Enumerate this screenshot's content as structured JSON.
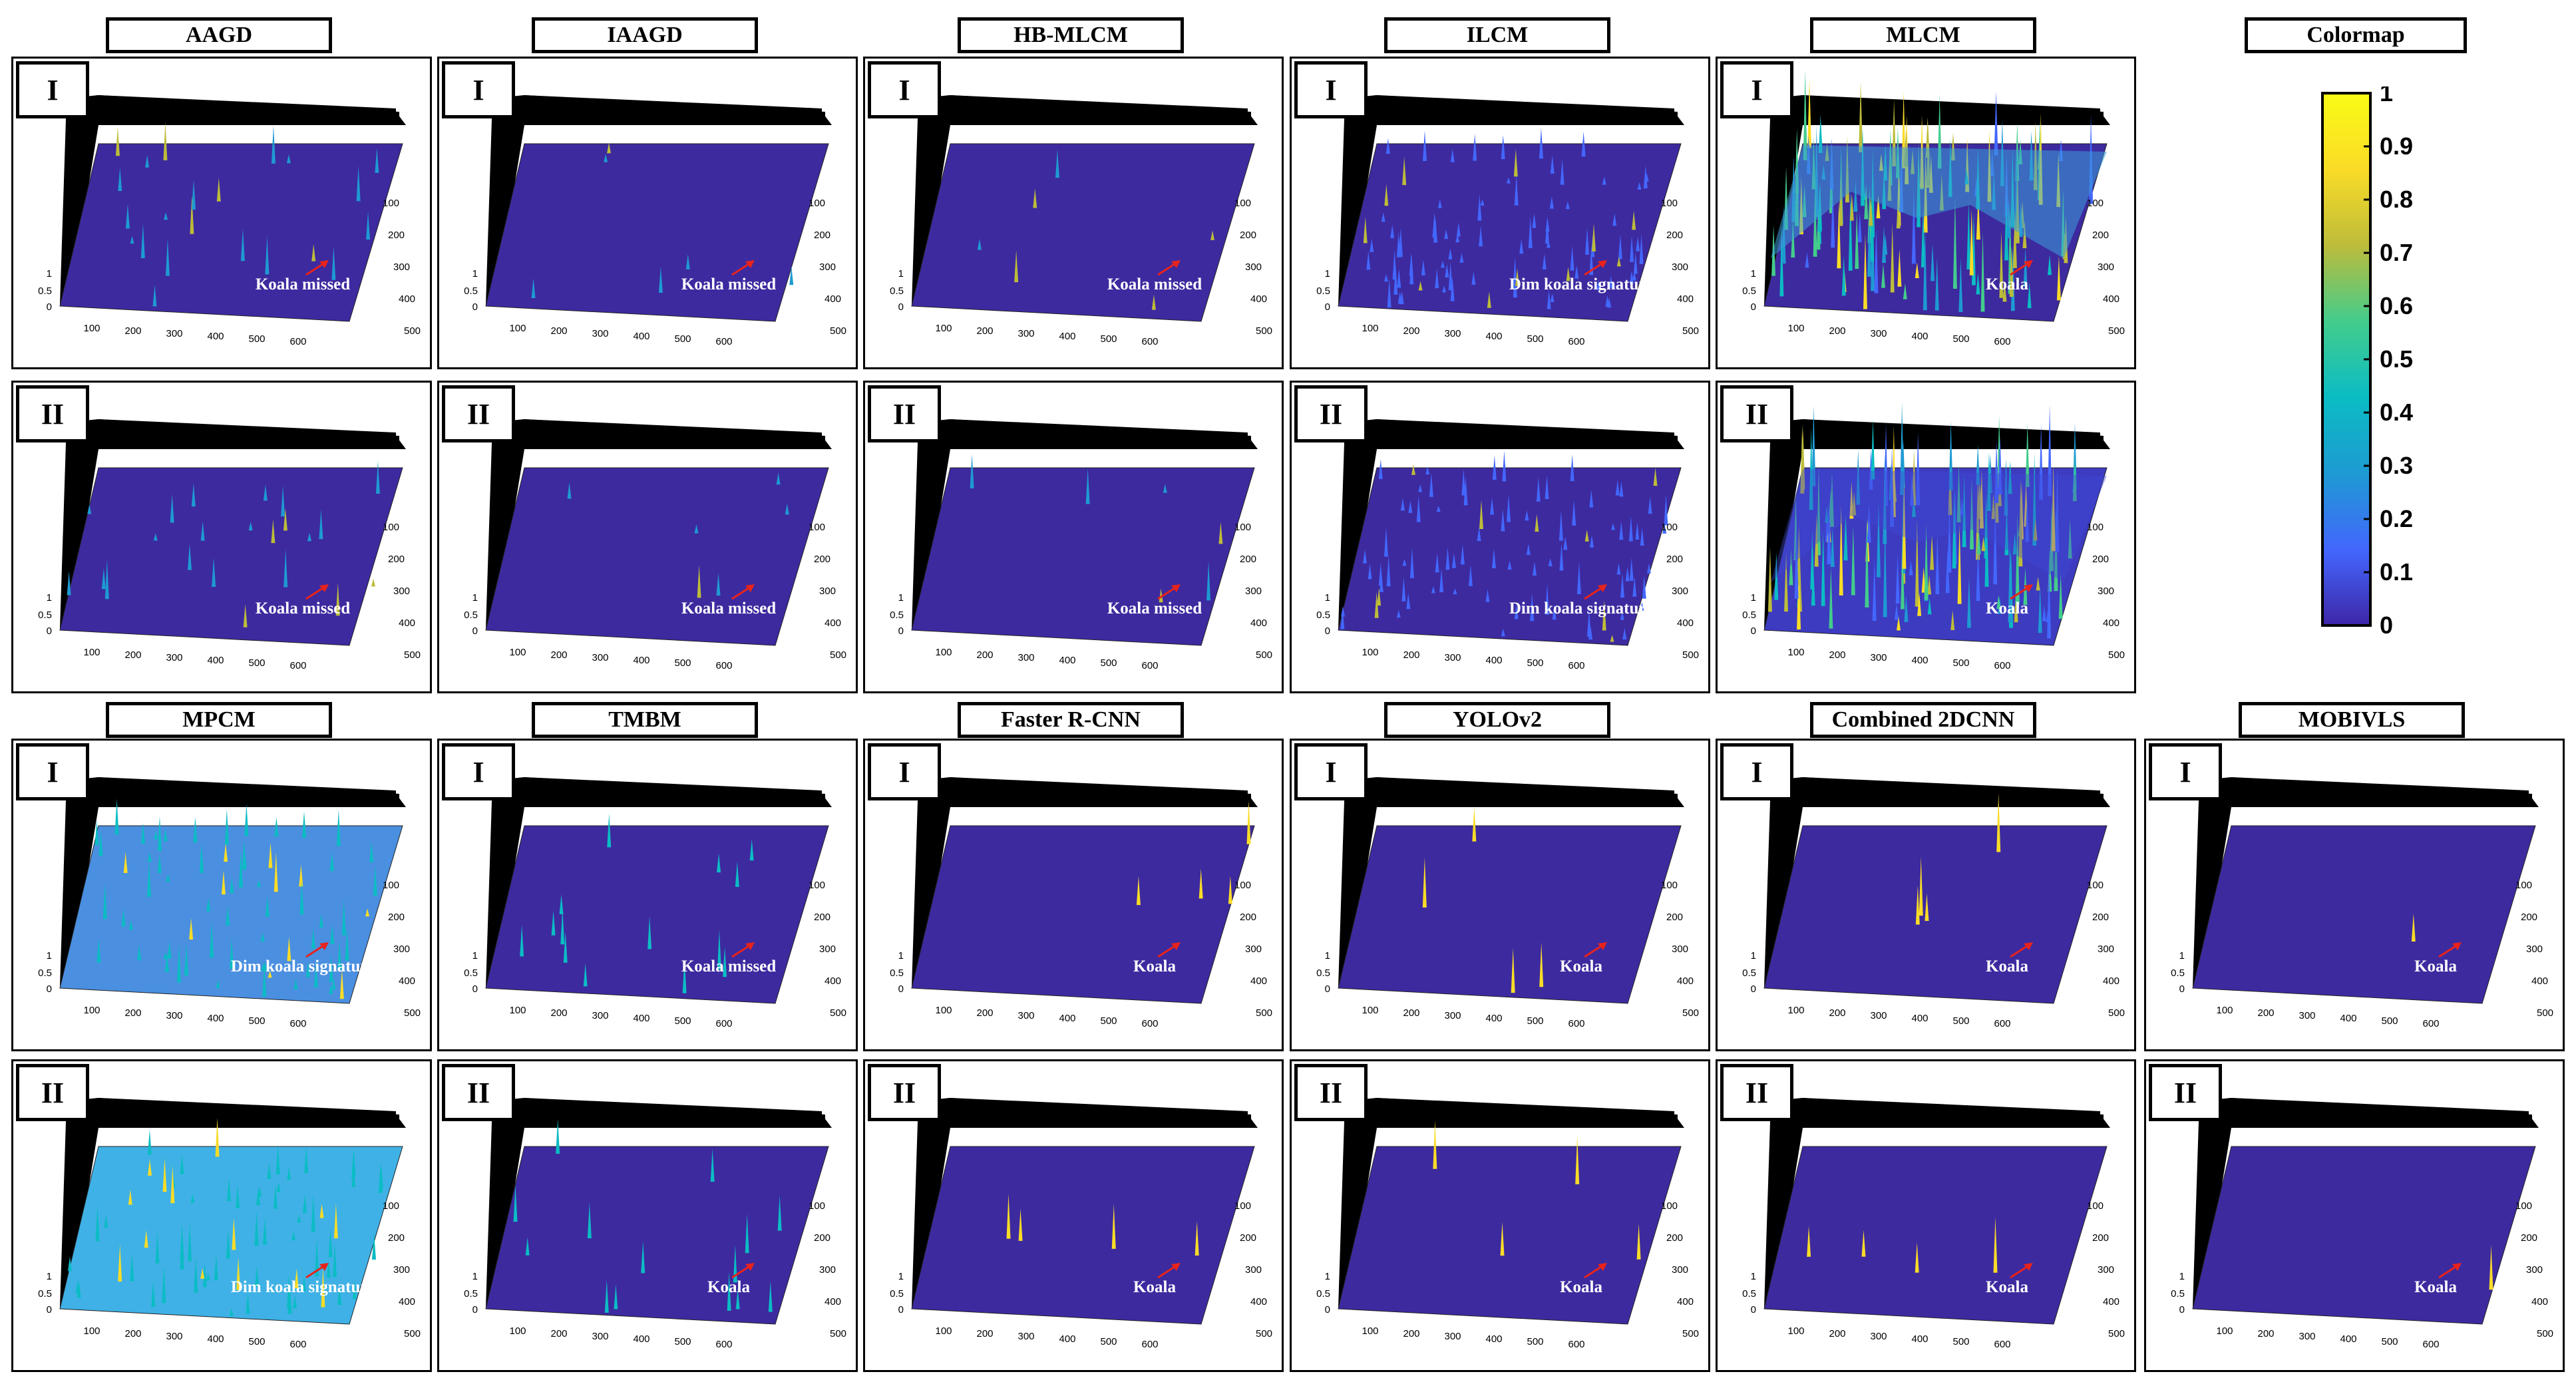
{
  "panel_labels": [
    "I",
    "II"
  ],
  "axis": {
    "z_ticks": [
      "0",
      "0.5",
      "1"
    ],
    "x_ticks": [
      "100",
      "200",
      "300",
      "400",
      "500",
      "600"
    ],
    "y_ticks": [
      "100",
      "200",
      "300",
      "400",
      "500"
    ]
  },
  "colormap": {
    "title": "Colormap",
    "ticks": [
      "0",
      "0.1",
      "0.2",
      "0.3",
      "0.4",
      "0.5",
      "0.6",
      "0.7",
      "0.8",
      "0.9",
      "1"
    ],
    "colors": [
      "#3e26a8",
      "#4367fd",
      "#1e9ad2",
      "#0bbcc4",
      "#43cc8c",
      "#bdbc3a",
      "#fadc27",
      "#f9fb15"
    ]
  },
  "methods": [
    {
      "name": "AAGD",
      "style": "sparse",
      "annotations": [
        "Koala missed",
        "Koala missed"
      ]
    },
    {
      "name": "IAAGD",
      "style": "empty",
      "annotations": [
        "Koala missed",
        "Koala missed"
      ]
    },
    {
      "name": "HB-MLCM",
      "style": "empty",
      "annotations": [
        "Koala missed",
        "Koala missed"
      ]
    },
    {
      "name": "ILCM",
      "style": "noisy",
      "annotations": [
        "Dim koala signature",
        "Dim koala signature"
      ]
    },
    {
      "name": "MLCM",
      "style": "heavy",
      "annotations": [
        "Koala",
        "Koala"
      ]
    },
    {
      "name": "MPCM",
      "style": "raised",
      "annotations": [
        "Dim koala signature",
        "Dim koala signature"
      ]
    },
    {
      "name": "TMBM",
      "style": "blobs",
      "annotations": [
        "Koala missed",
        "Koala"
      ]
    },
    {
      "name": "Faster R-CNN",
      "style": "few",
      "annotations": [
        "Koala",
        "Koala"
      ]
    },
    {
      "name": "YOLOv2",
      "style": "few",
      "annotations": [
        "Koala",
        "Koala"
      ]
    },
    {
      "name": "Combined 2DCNN",
      "style": "few",
      "annotations": [
        "Koala",
        "Koala"
      ]
    },
    {
      "name": "MOBIVLS",
      "style": "clean",
      "annotations": [
        "Koala",
        "Koala"
      ]
    }
  ]
}
